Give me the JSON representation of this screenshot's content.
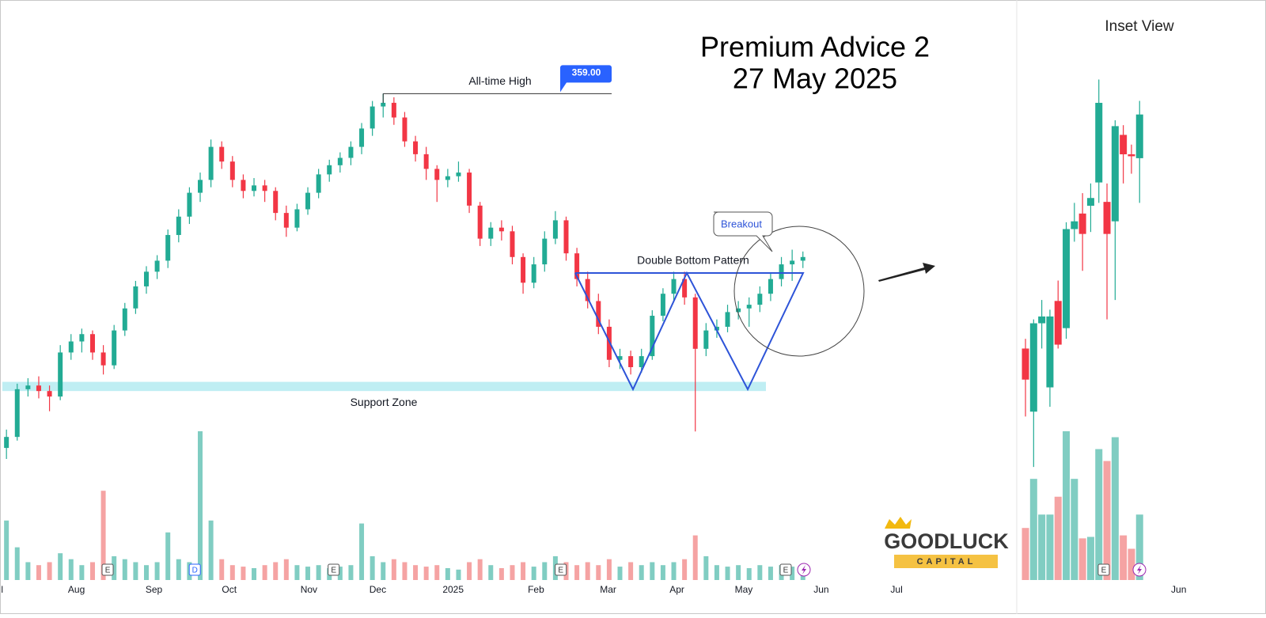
{
  "title": [
    "Premium Advice 2",
    "27 May 2025"
  ],
  "logo": {
    "name": "GOODLUCK",
    "tagline": "CAPITAL"
  },
  "chart_data": [
    {
      "type": "candlestick",
      "ylim": [
        160,
        410
      ],
      "vlim": [
        0,
        100
      ],
      "xlim": [
        -0.6,
        93.5
      ],
      "up_color": "#22ab94",
      "down_color": "#f23645",
      "vol_up_color": "#80cdc2",
      "vol_down_color": "#f5a3a3",
      "xticks": [
        {
          "value": -0.4,
          "label": "l"
        },
        {
          "value": 6.5,
          "label": "Aug"
        },
        {
          "value": 13.7,
          "label": "Sep"
        },
        {
          "value": 20.7,
          "label": "Oct"
        },
        {
          "value": 28.1,
          "label": "Nov"
        },
        {
          "value": 34.5,
          "label": "Dec"
        },
        {
          "value": 41.5,
          "label": "2025"
        },
        {
          "value": 49.2,
          "label": "Feb"
        },
        {
          "value": 55.9,
          "label": "Mar"
        },
        {
          "value": 62.3,
          "label": "Apr"
        },
        {
          "value": 68.5,
          "label": "May"
        },
        {
          "value": 75.7,
          "label": "Jun"
        },
        {
          "value": 82.7,
          "label": "Jul"
        }
      ],
      "events": [
        {
          "at": 9.4,
          "label": "E"
        },
        {
          "at": 17.5,
          "label": "D"
        },
        {
          "at": 30.4,
          "label": "E"
        },
        {
          "at": 51.5,
          "label": "E"
        },
        {
          "at": 72.4,
          "label": "E"
        }
      ],
      "ath": {
        "at": 35,
        "value": 359,
        "label": "359.00",
        "text": "All-time High"
      },
      "support_zone": {
        "label": "Support Zone",
        "range": [
          197,
          202
        ]
      },
      "pattern": "Double Bottom Pattern",
      "callout": "Breakout",
      "candles": [
        [
          166,
          176,
          160,
          172,
          40
        ],
        [
          172,
          201,
          170,
          198,
          22
        ],
        [
          198,
          204,
          194,
          200,
          12
        ],
        [
          200,
          205,
          193,
          197,
          10
        ],
        [
          197,
          200,
          186,
          194,
          12
        ],
        [
          194,
          222,
          192,
          218,
          18
        ],
        [
          218,
          228,
          214,
          224,
          14
        ],
        [
          224,
          231,
          218,
          228,
          10
        ],
        [
          228,
          230,
          214,
          218,
          12
        ],
        [
          218,
          222,
          206,
          211,
          60
        ],
        [
          211,
          233,
          209,
          230,
          16
        ],
        [
          230,
          245,
          227,
          242,
          14
        ],
        [
          242,
          257,
          239,
          254,
          12
        ],
        [
          254,
          265,
          250,
          262,
          10
        ],
        [
          262,
          271,
          258,
          268,
          12
        ],
        [
          268,
          285,
          264,
          282,
          32
        ],
        [
          282,
          296,
          278,
          292,
          14
        ],
        [
          292,
          308,
          288,
          305,
          12
        ],
        [
          305,
          316,
          300,
          312,
          100
        ],
        [
          312,
          334,
          308,
          330,
          40
        ],
        [
          330,
          333,
          318,
          322,
          14
        ],
        [
          322,
          325,
          308,
          312,
          10
        ],
        [
          312,
          315,
          302,
          306,
          9
        ],
        [
          306,
          313,
          303,
          309,
          8
        ],
        [
          309,
          312,
          300,
          306,
          10
        ],
        [
          306,
          308,
          290,
          294,
          12
        ],
        [
          294,
          298,
          281,
          286,
          14
        ],
        [
          286,
          299,
          284,
          296,
          10
        ],
        [
          296,
          308,
          293,
          305,
          9
        ],
        [
          305,
          318,
          302,
          315,
          10
        ],
        [
          315,
          323,
          311,
          320,
          8
        ],
        [
          320,
          327,
          316,
          324,
          9
        ],
        [
          324,
          333,
          320,
          330,
          10
        ],
        [
          330,
          343,
          326,
          340,
          38
        ],
        [
          340,
          355,
          336,
          352,
          16
        ],
        [
          352,
          359,
          346,
          354,
          12
        ],
        [
          354,
          357,
          342,
          346,
          14
        ],
        [
          346,
          349,
          330,
          333,
          12
        ],
        [
          333,
          336,
          322,
          326,
          10
        ],
        [
          326,
          330,
          312,
          318,
          9
        ],
        [
          318,
          320,
          300,
          312,
          10
        ],
        [
          312,
          318,
          308,
          314,
          8
        ],
        [
          314,
          322,
          311,
          316,
          7
        ],
        [
          316,
          318,
          294,
          298,
          12
        ],
        [
          298,
          300,
          276,
          280,
          14
        ],
        [
          280,
          289,
          276,
          286,
          10
        ],
        [
          286,
          290,
          279,
          284,
          8
        ],
        [
          284,
          287,
          266,
          270,
          10
        ],
        [
          270,
          272,
          250,
          256,
          12
        ],
        [
          256,
          270,
          253,
          266,
          9
        ],
        [
          266,
          284,
          262,
          280,
          12
        ],
        [
          280,
          295,
          277,
          290,
          16
        ],
        [
          290,
          292,
          268,
          272,
          12
        ],
        [
          272,
          275,
          254,
          258,
          10
        ],
        [
          258,
          262,
          242,
          246,
          12
        ],
        [
          246,
          250,
          228,
          232,
          10
        ],
        [
          232,
          236,
          210,
          214,
          14
        ],
        [
          214,
          220,
          209,
          216,
          9
        ],
        [
          216,
          219,
          206,
          210,
          12
        ],
        [
          210,
          220,
          207,
          216,
          10
        ],
        [
          216,
          241,
          214,
          238,
          12
        ],
        [
          238,
          253,
          235,
          250,
          10
        ],
        [
          250,
          262,
          246,
          258,
          12
        ],
        [
          258,
          262,
          244,
          248,
          14
        ],
        [
          248,
          250,
          175,
          220,
          30
        ],
        [
          220,
          234,
          216,
          230,
          16
        ],
        [
          230,
          236,
          226,
          232,
          10
        ],
        [
          232,
          244,
          229,
          240,
          9
        ],
        [
          240,
          246,
          236,
          242,
          10
        ],
        [
          242,
          248,
          232,
          244,
          8
        ],
        [
          244,
          254,
          240,
          250,
          10
        ],
        [
          250,
          261,
          246,
          258,
          9
        ],
        [
          258,
          270,
          254,
          266,
          10
        ],
        [
          266,
          274,
          257,
          268,
          9
        ],
        [
          268,
          273,
          264,
          270,
          8
        ]
      ]
    },
    {
      "type": "candlestick",
      "title": "Inset View",
      "ylim": [
        238,
        282
      ],
      "vlim": [
        0,
        100
      ],
      "xlim": [
        -1.07,
        26.4
      ],
      "up_color": "#22ab94",
      "down_color": "#f23645",
      "vol_up_color": "#80cdc2",
      "vol_down_color": "#f5a3a3",
      "xticks": [
        {
          "value": 18.8,
          "label": "Jun"
        }
      ],
      "events": [
        {
          "at": 9.6,
          "label": "E"
        }
      ],
      "candles": [
        [
          251,
          252,
          244,
          247.8,
          35
        ],
        [
          244.5,
          254,
          238.8,
          253.6,
          68
        ],
        [
          253.6,
          256,
          251,
          254.3,
          44
        ],
        [
          247,
          255,
          245,
          254.3,
          44
        ],
        [
          255.9,
          258,
          251,
          251.4,
          56
        ],
        [
          253.1,
          264,
          252,
          263.3,
          100
        ],
        [
          263.3,
          266,
          262,
          264.1,
          68
        ],
        [
          264.9,
          267,
          259,
          262.8,
          28
        ],
        [
          265.7,
          268,
          263,
          266.5,
          29
        ],
        [
          268.1,
          278.7,
          266,
          276.3,
          88
        ],
        [
          266.1,
          268,
          254,
          262.8,
          80
        ],
        [
          264.1,
          274.5,
          256,
          273.9,
          96
        ],
        [
          273,
          274,
          268,
          271,
          30
        ],
        [
          271,
          272,
          269,
          270.8,
          21
        ],
        [
          270.6,
          276.5,
          266,
          275.1,
          44
        ]
      ]
    }
  ]
}
